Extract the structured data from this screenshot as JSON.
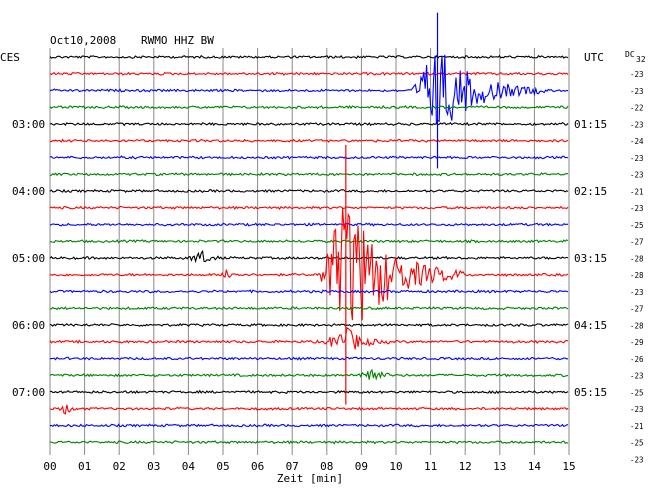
{
  "header": {
    "date": "Oct10,2008",
    "station": "RWMO HHZ BW"
  },
  "chart_data": {
    "type": "line",
    "title": "Oct10,2008   RWMO HHZ BW",
    "left_timezone": "CES",
    "right_timezone": "UTC",
    "dc_label_prefix": "DC",
    "dc_label_sub": "32",
    "xlabel": "Zeit [min]",
    "xlim": [
      0,
      15
    ],
    "x_ticks": [
      "00",
      "01",
      "02",
      "03",
      "04",
      "05",
      "06",
      "07",
      "08",
      "09",
      "10",
      "11",
      "12",
      "13",
      "14",
      "15"
    ],
    "left_hour_labels": [
      {
        "row": 4,
        "text": "03:00"
      },
      {
        "row": 8,
        "text": "04:00"
      },
      {
        "row": 12,
        "text": "05:00"
      },
      {
        "row": 16,
        "text": "06:00"
      },
      {
        "row": 20,
        "text": "07:00"
      }
    ],
    "right_hour_labels": [
      {
        "row": 4,
        "text": "01:15"
      },
      {
        "row": 8,
        "text": "02:15"
      },
      {
        "row": 12,
        "text": "03:15"
      },
      {
        "row": 16,
        "text": "04:15"
      },
      {
        "row": 20,
        "text": "05:15"
      }
    ],
    "row_colors": [
      "#000000",
      "#ff0000",
      "#0000ff",
      "#008000"
    ],
    "dc_offsets": [
      -23,
      -23,
      -22,
      -23,
      -24,
      -23,
      -23,
      -21,
      -23,
      -25,
      -27,
      -28,
      -28,
      -23,
      -27,
      -28,
      -29,
      -26,
      -23,
      -25,
      -23,
      -21,
      -25,
      -23
    ],
    "events": [
      {
        "row": 2,
        "start_min": 10.45,
        "peak_min": 11.2,
        "end_min": 14.3,
        "amplitude": 3.0
      },
      {
        "row": 12,
        "start_min": 3.95,
        "peak_min": 4.4,
        "end_min": 5.0,
        "amplitude": 0.45
      },
      {
        "row": 13,
        "start_min": 4.95,
        "peak_min": 5.1,
        "end_min": 5.6,
        "amplitude": 0.5
      },
      {
        "row": 13,
        "start_min": 7.75,
        "peak_min": 8.55,
        "end_min": 12.0,
        "amplitude": 5.0
      },
      {
        "row": 17,
        "start_min": 7.9,
        "peak_min": 8.6,
        "end_min": 9.8,
        "amplitude": 0.9
      },
      {
        "row": 19,
        "start_min": 8.9,
        "peak_min": 9.25,
        "end_min": 9.9,
        "amplitude": 0.7
      },
      {
        "row": 21,
        "start_min": 0.25,
        "peak_min": 0.45,
        "end_min": 0.9,
        "amplitude": 0.35
      }
    ]
  }
}
